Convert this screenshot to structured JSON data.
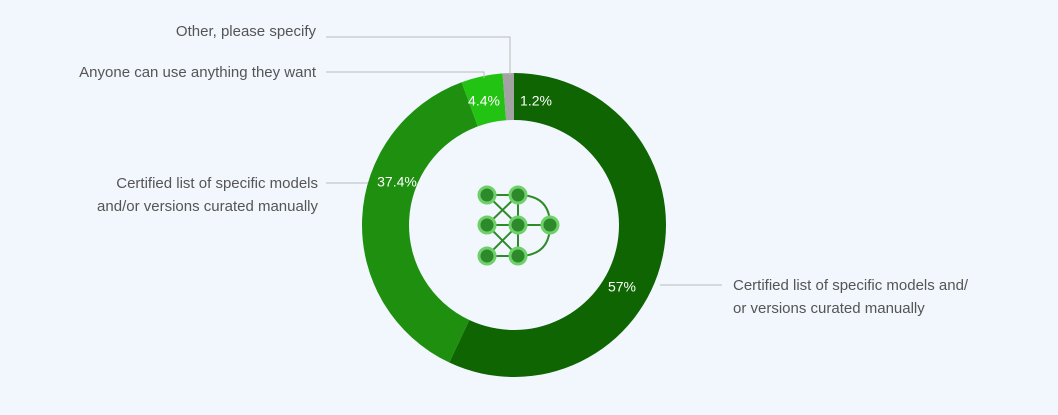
{
  "chart_data": {
    "type": "pie",
    "categories": [
      "Certified list of specific models and/\nor versions curated manually",
      "Certified list of specific models\nand/or versions curated manually",
      "Anyone can use anything they want",
      "Other, please specify"
    ],
    "values": [
      57,
      37.4,
      4.4,
      1.2
    ],
    "value_labels": [
      "57%",
      "37.4%",
      "4.4%",
      "1.2%"
    ],
    "colors": [
      "#0e6502",
      "#1e8f0f",
      "#23c313",
      "#a3a3a3"
    ]
  }
}
